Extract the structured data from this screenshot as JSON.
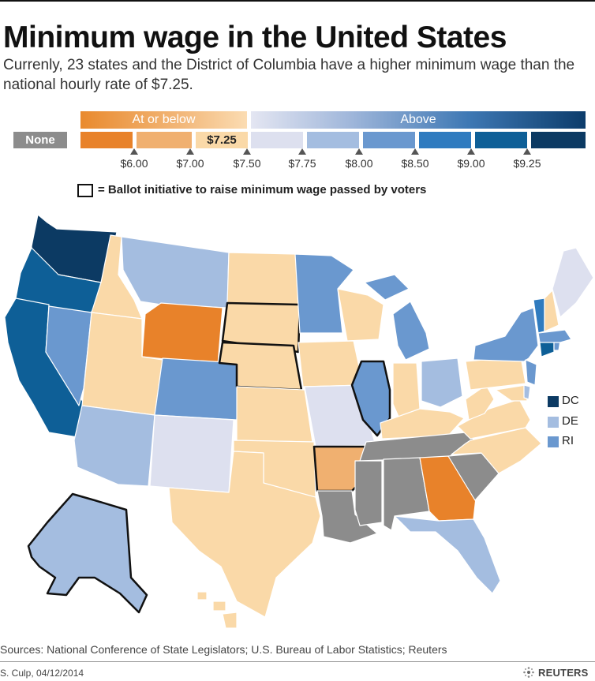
{
  "title": "Minimum wage in the United States",
  "subtitle": "Currenly, 23 states and the District of Columbia have a higher minimum wage than the national hourly rate of $7.25.",
  "legend": {
    "at_or_below_label": "At or below",
    "above_label": "Above",
    "none_label": "None",
    "federal_label": "$7.25",
    "ticks": [
      "$6.00",
      "$7.00",
      "$7.50",
      "$7.75",
      "$8.00",
      "$8.50",
      "$9.00",
      "$9.25"
    ],
    "colors": {
      "none": "#8c8c8c",
      "under_6": "#e8822a",
      "6_to_7": "#f0b070",
      "federal": "#fad9a8",
      "7_50_to_7_75": "#dde0ef",
      "7_75_to_8": "#a4bde0",
      "8_to_8_50": "#6a98cf",
      "8_50_to_9": "#2f7bbf",
      "9_to_9_25": "#0e5f97",
      "above_9_25": "#0c3a63"
    },
    "ballot_label": "= Ballot initiative to raise minimum wage passed by voters"
  },
  "small_states": [
    {
      "label": "DC",
      "color": "#0c3a63"
    },
    {
      "label": "DE",
      "color": "#a4bde0"
    },
    {
      "label": "RI",
      "color": "#6a98cf"
    }
  ],
  "sources": "Sources: National Conference of State Legislators; U.S. Bureau of Labor Statistics; Reuters",
  "credit": "S. Culp, 04/12/2014",
  "brand": "REUTERS"
}
